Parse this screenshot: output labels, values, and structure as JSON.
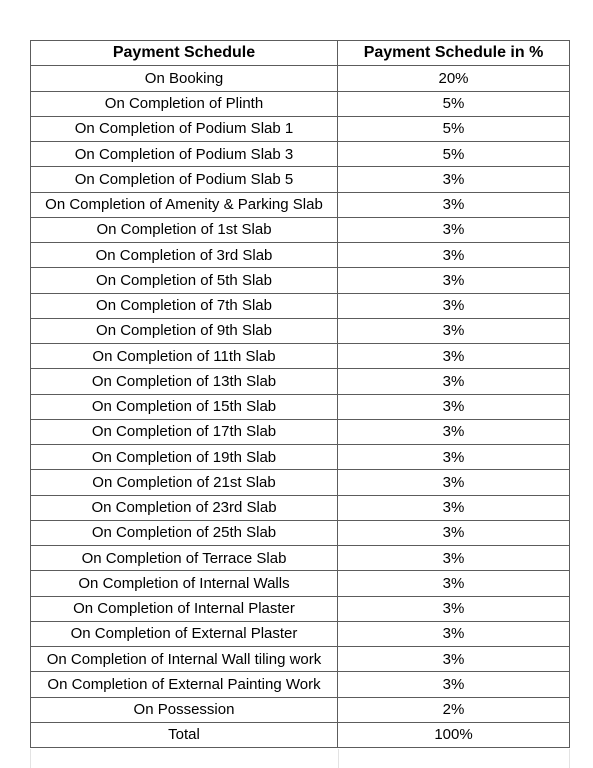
{
  "table": {
    "headers": [
      "Payment Schedule",
      "Payment Schedule in %"
    ],
    "rows": [
      [
        "On Booking",
        "20%"
      ],
      [
        "On Completion of Plinth",
        "5%"
      ],
      [
        "On Completion of Podium Slab 1",
        "5%"
      ],
      [
        "On Completion of Podium Slab 3",
        "5%"
      ],
      [
        "On Completion of Podium Slab 5",
        "3%"
      ],
      [
        "On Completion of Amenity & Parking Slab",
        "3%"
      ],
      [
        "On Completion of 1st Slab",
        "3%"
      ],
      [
        "On Completion of 3rd Slab",
        "3%"
      ],
      [
        "On Completion of 5th Slab",
        "3%"
      ],
      [
        "On Completion of 7th Slab",
        "3%"
      ],
      [
        "On Completion of 9th Slab",
        "3%"
      ],
      [
        "On Completion of 11th Slab",
        "3%"
      ],
      [
        "On Completion of 13th Slab",
        "3%"
      ],
      [
        "On Completion of 15th Slab",
        "3%"
      ],
      [
        "On Completion of 17th Slab",
        "3%"
      ],
      [
        "On Completion of 19th Slab",
        "3%"
      ],
      [
        "On Completion of 21st Slab",
        "3%"
      ],
      [
        "On Completion of 23rd Slab",
        "3%"
      ],
      [
        "On Completion of 25th Slab",
        "3%"
      ],
      [
        "On Completion of Terrace Slab",
        "3%"
      ],
      [
        "On Completion of Internal Walls",
        "3%"
      ],
      [
        "On Completion of Internal Plaster",
        "3%"
      ],
      [
        "On Completion of External Plaster",
        "3%"
      ],
      [
        "On Completion of Internal Wall tiling work",
        "3%"
      ],
      [
        "On Completion of External Painting Work",
        "3%"
      ],
      [
        "On Possession",
        "2%"
      ],
      [
        "Total",
        "100%"
      ]
    ]
  },
  "colors": {
    "border": "#5c5c5c",
    "background": "#ffffff",
    "text": "#000000"
  }
}
